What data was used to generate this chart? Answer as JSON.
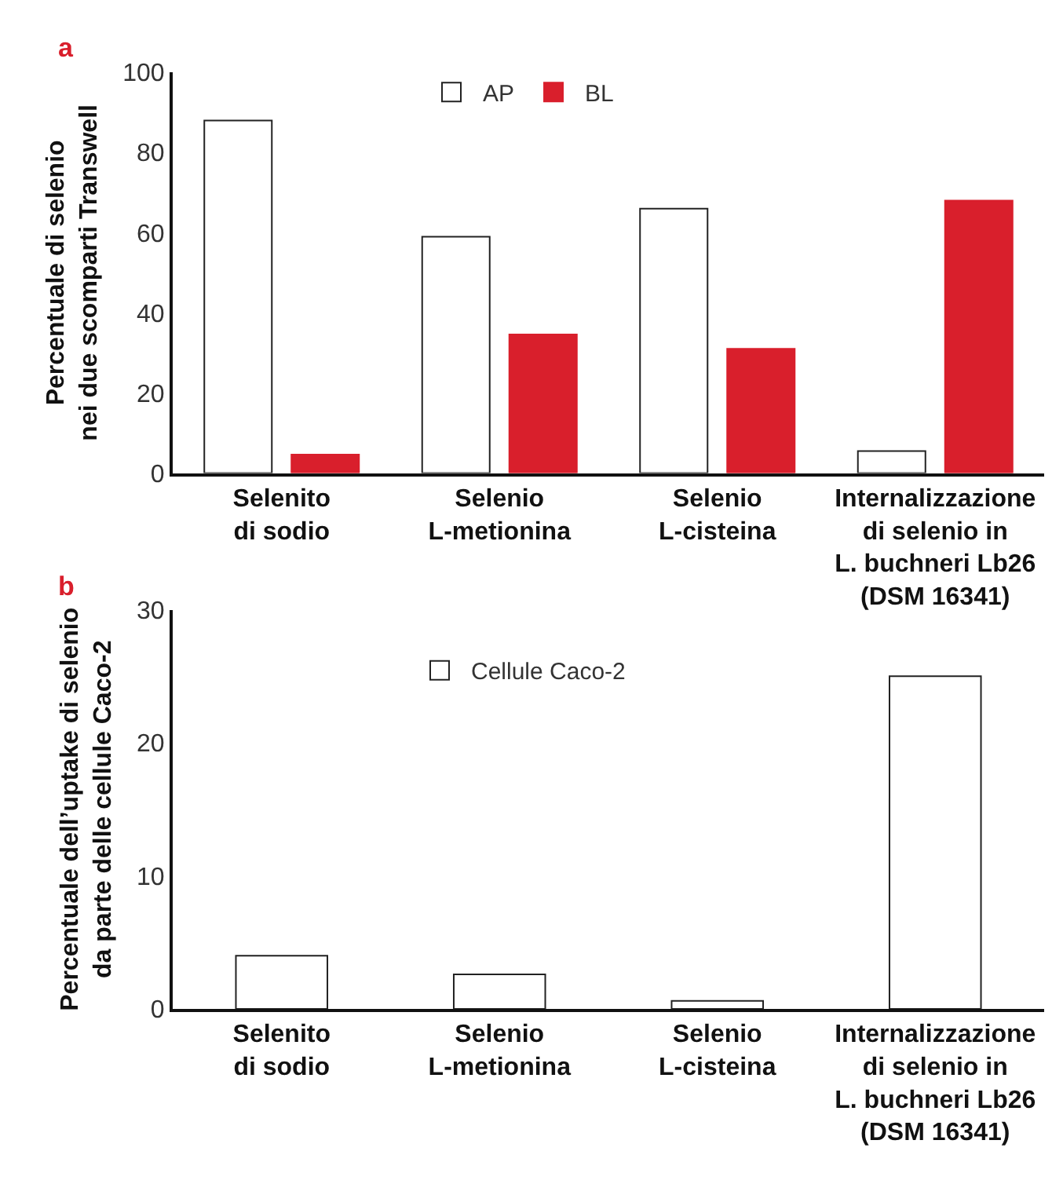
{
  "chart_data": [
    {
      "type": "bar",
      "annotations": [
        "a"
      ],
      "ylabel": "Percentuale di selenio\nnei due scomparti Transwell",
      "categories": [
        "Selenito\ndi sodio",
        "Selenio\nL-metionina",
        "Selenio\nL-cisteina",
        "Internalizzazione\ndi selenio in\nL. buchneri Lb26\n(DSM 16341)"
      ],
      "series": [
        {
          "name": "AP",
          "color": "#ffffff",
          "values": [
            88,
            59,
            66,
            5.5
          ]
        },
        {
          "name": "BL",
          "color": "#d91f2c",
          "values": [
            4.6,
            34.6,
            31,
            68
          ]
        }
      ],
      "ylim": [
        0,
        100
      ],
      "yticks": [
        0,
        20,
        40,
        60,
        80,
        100
      ],
      "legend": "top"
    },
    {
      "type": "bar",
      "annotations": [
        "b"
      ],
      "ylabel": "Percentuale dell’uptake di selenio\nda parte delle cellule Caco-2",
      "categories": [
        "Selenito\ndi sodio",
        "Selenio\nL-metionina",
        "Selenio\nL-cisteina",
        "Internalizzazione\ndi selenio in\nL. buchneri Lb26\n(DSM 16341)"
      ],
      "series": [
        {
          "name": "Cellule Caco-2",
          "color": "#ffffff",
          "values": [
            4,
            2.6,
            0.6,
            25
          ]
        }
      ],
      "ylim": [
        0,
        30
      ],
      "yticks": [
        0,
        10,
        20,
        30
      ],
      "legend": "top"
    }
  ]
}
